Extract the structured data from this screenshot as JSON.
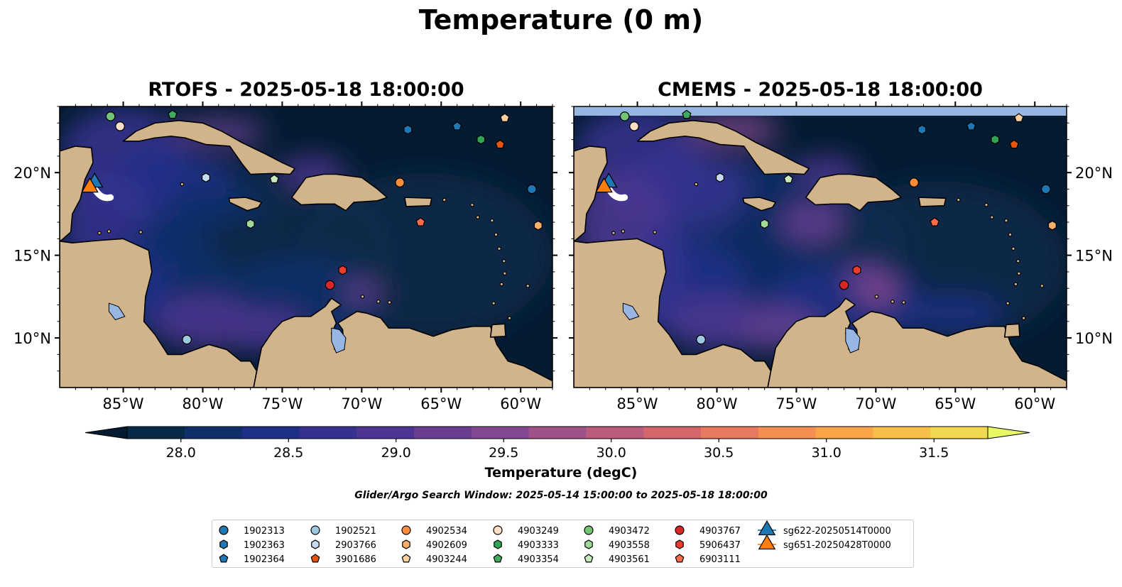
{
  "suptitle": "Temperature (0 m)",
  "panels": [
    {
      "title": "RTOFS - 2025-05-18 18:00:00",
      "model": "RTOFS"
    },
    {
      "title": "CMEMS - 2025-05-18 18:00:00",
      "model": "CMEMS"
    }
  ],
  "map_axes": {
    "lon_range": [
      -89,
      -58
    ],
    "lat_range": [
      7,
      24
    ],
    "lon_ticks": [
      {
        "value": -85,
        "label": "85°W"
      },
      {
        "value": -80,
        "label": "80°W"
      },
      {
        "value": -75,
        "label": "75°W"
      },
      {
        "value": -70,
        "label": "70°W"
      },
      {
        "value": -65,
        "label": "65°W"
      },
      {
        "value": -60,
        "label": "60°W"
      }
    ],
    "lat_ticks": [
      {
        "value": 20,
        "label": "20°N"
      },
      {
        "value": 15,
        "label": "15°N"
      },
      {
        "value": 10,
        "label": "10°N"
      }
    ]
  },
  "colorbar": {
    "label": "Temperature (degC)",
    "min": 27.75,
    "max": 31.75,
    "ticks": [
      "28.0",
      "28.5",
      "29.0",
      "29.5",
      "30.0",
      "30.5",
      "31.0",
      "31.5"
    ],
    "colors": [
      "#041b32",
      "#082a4a",
      "#0f2f6a",
      "#1e2f87",
      "#35318f",
      "#4d3591",
      "#693e92",
      "#824992",
      "#9f5288",
      "#b95c7e",
      "#d5666c",
      "#e87961",
      "#f58e51",
      "#f9a446",
      "#f7bf47",
      "#f0d84f",
      "#e8f764"
    ]
  },
  "search_window": "Glider/Argo Search Window: 2025-05-14 15:00:00 to 2025-05-18 18:00:00",
  "chart_data": {
    "type": "map",
    "variable": "Temperature",
    "units": "degC",
    "depth": "0 m",
    "argo_floats": [
      {
        "id": "1902313",
        "marker": "circle",
        "color": "#1f77b4",
        "lon": -59.3,
        "lat": 19.0
      },
      {
        "id": "1902363",
        "marker": "hexagon",
        "color": "#1f77b4",
        "lon": -67.1,
        "lat": 22.6
      },
      {
        "id": "1902364",
        "marker": "pentagon",
        "color": "#1f77b4",
        "lon": -64.0,
        "lat": 22.8
      },
      {
        "id": "1902521",
        "marker": "circle",
        "color": "#9ecae1",
        "lon": -81.0,
        "lat": 9.9
      },
      {
        "id": "2903766",
        "marker": "hexagon",
        "color": "#c6dbef",
        "lon": -79.8,
        "lat": 19.7
      },
      {
        "id": "3901686",
        "marker": "pentagon",
        "color": "#e6550d",
        "lon": -61.3,
        "lat": 21.7
      },
      {
        "id": "4902534",
        "marker": "circle",
        "color": "#fd8d3c",
        "lon": -67.6,
        "lat": 19.4
      },
      {
        "id": "4902609",
        "marker": "hexagon",
        "color": "#fdae6b",
        "lon": -58.9,
        "lat": 16.8
      },
      {
        "id": "4903244",
        "marker": "pentagon",
        "color": "#fdd0a2",
        "lon": -61.0,
        "lat": 23.3
      },
      {
        "id": "4903249",
        "marker": "circle",
        "color": "#fde0c5",
        "lon": -85.2,
        "lat": 22.8
      },
      {
        "id": "4903333",
        "marker": "hexagon",
        "color": "#31a354",
        "lon": -62.5,
        "lat": 22.0
      },
      {
        "id": "4903354",
        "marker": "pentagon",
        "color": "#41ab5d",
        "lon": -81.9,
        "lat": 23.5
      },
      {
        "id": "4903472",
        "marker": "circle",
        "color": "#74c476",
        "lon": -85.8,
        "lat": 23.4
      },
      {
        "id": "4903558",
        "marker": "hexagon",
        "color": "#a1d99b",
        "lon": -77.0,
        "lat": 16.9
      },
      {
        "id": "4903561",
        "marker": "pentagon",
        "color": "#c7e9c0",
        "lon": -75.5,
        "lat": 19.6
      },
      {
        "id": "4903767",
        "marker": "circle",
        "color": "#d62728",
        "lon": -72.0,
        "lat": 13.2
      },
      {
        "id": "5906437",
        "marker": "hexagon",
        "color": "#ef3b2c",
        "lon": -71.2,
        "lat": 14.1
      },
      {
        "id": "6903111",
        "marker": "pentagon",
        "color": "#fb6a4a",
        "lon": -66.3,
        "lat": 17.0
      }
    ],
    "gliders": [
      {
        "id": "sg622-20250514T0000",
        "marker": "triangle",
        "color": "#1f77b4",
        "lon": -86.8,
        "lat": 19.4
      },
      {
        "id": "sg651-20250428T0000",
        "marker": "triangle",
        "color": "#ff7f0e",
        "lon": -87.1,
        "lat": 19.1
      }
    ]
  },
  "legend": {
    "columns": [
      [
        "1902313",
        "1902363",
        "1902364"
      ],
      [
        "1902521",
        "2903766",
        "3901686"
      ],
      [
        "4902534",
        "4902609",
        "4903244"
      ],
      [
        "4903249",
        "4903333",
        "4903354"
      ],
      [
        "4903472",
        "4903558",
        "4903561"
      ],
      [
        "4903767",
        "5906437",
        "6903111"
      ],
      [
        "sg622-20250514T0000",
        "sg651-20250428T0000"
      ]
    ]
  },
  "colors": {
    "land": "#d2b48c",
    "lakes": "#97b6e1",
    "coast": "#000000",
    "ocean_min": "#041b32"
  }
}
